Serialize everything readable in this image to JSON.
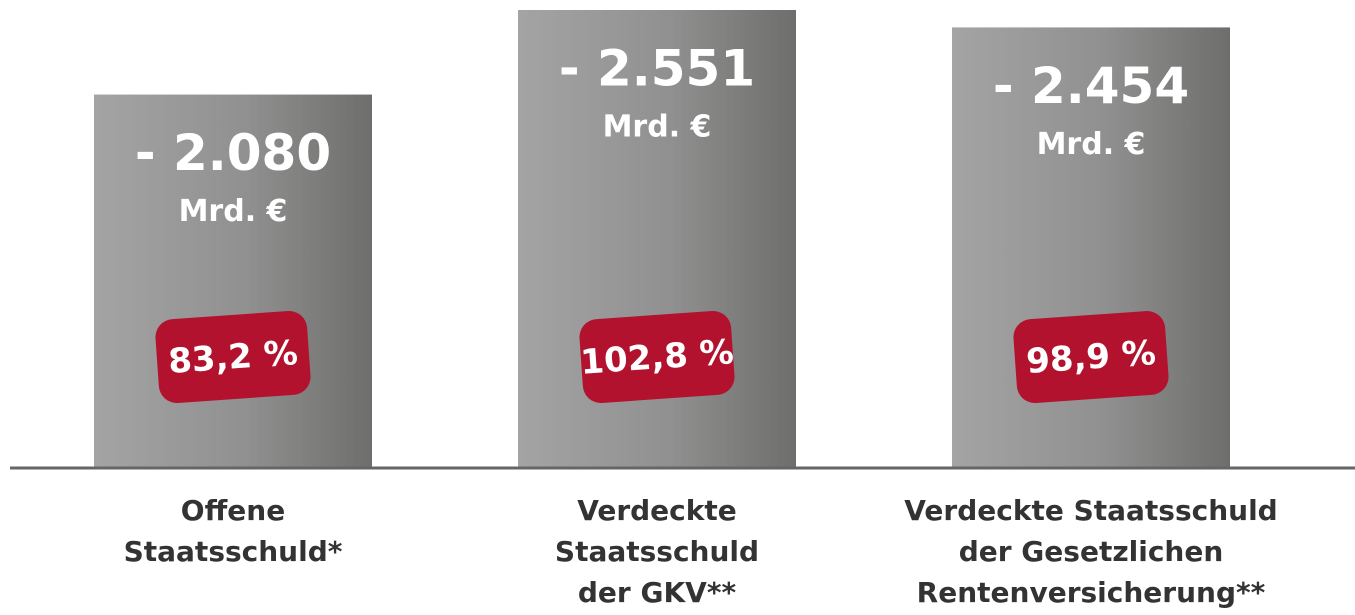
{
  "chart_data": {
    "type": "bar",
    "categories": [
      [
        "Offene",
        "Staatsschuld*"
      ],
      [
        "Verdeckte",
        "Staatsschuld",
        "der GKV**"
      ],
      [
        "Verdeckte Staatsschuld",
        "der Gesetzlichen",
        "Rentenversicherung**"
      ]
    ],
    "values": [
      -2080,
      -2551,
      -2454
    ],
    "value_labels": [
      "- 2.080",
      "- 2.551",
      "- 2.454"
    ],
    "unit": "Mrd. €",
    "percent": [
      83.2,
      102.8,
      98.9
    ],
    "percent_labels": [
      "83,2 %",
      "102,8 %",
      "98,9 %"
    ],
    "color": "#8e8e8e",
    "badge_color": "#b3122e",
    "ylim": [
      0,
      -2600
    ]
  }
}
